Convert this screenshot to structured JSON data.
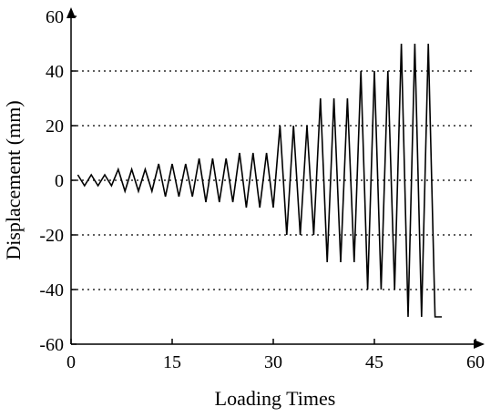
{
  "chart_data": {
    "type": "line",
    "xlabel": "Loading Times",
    "ylabel": "Displacement (mm)",
    "xlim": [
      0,
      60
    ],
    "ylim": [
      -60,
      60
    ],
    "xticks": [
      0,
      15,
      30,
      45,
      60
    ],
    "yticks": [
      -60,
      -40,
      -20,
      0,
      20,
      40,
      60
    ],
    "grid_y_dotted": [
      -40,
      -20,
      0,
      20,
      40
    ],
    "line_color": "#000000",
    "series": [
      {
        "x": [
          1,
          2,
          3,
          4,
          5,
          6,
          7,
          8,
          9,
          10,
          11,
          12,
          13,
          14,
          15,
          16,
          17,
          18,
          19,
          20,
          21,
          22,
          23,
          24,
          25,
          26,
          27,
          28,
          29,
          30,
          31,
          32,
          33,
          34,
          35,
          36,
          37,
          38,
          39,
          40,
          41,
          42,
          43,
          44,
          45,
          46,
          47,
          48,
          49,
          50,
          51,
          52,
          53,
          54,
          55
        ],
        "y": [
          2,
          -2,
          2,
          -2,
          2,
          -2,
          4,
          -4,
          4,
          -4,
          4,
          -4,
          6,
          -6,
          6,
          -6,
          6,
          -6,
          8,
          -8,
          8,
          -8,
          8,
          -8,
          10,
          -10,
          10,
          -10,
          10,
          -10,
          20,
          -20,
          20,
          -20,
          20,
          -20,
          30,
          -30,
          30,
          -30,
          30,
          -30,
          40,
          -40,
          40,
          -40,
          40,
          -40,
          50,
          -50,
          50,
          -50,
          50,
          -50,
          -50
        ]
      }
    ]
  }
}
